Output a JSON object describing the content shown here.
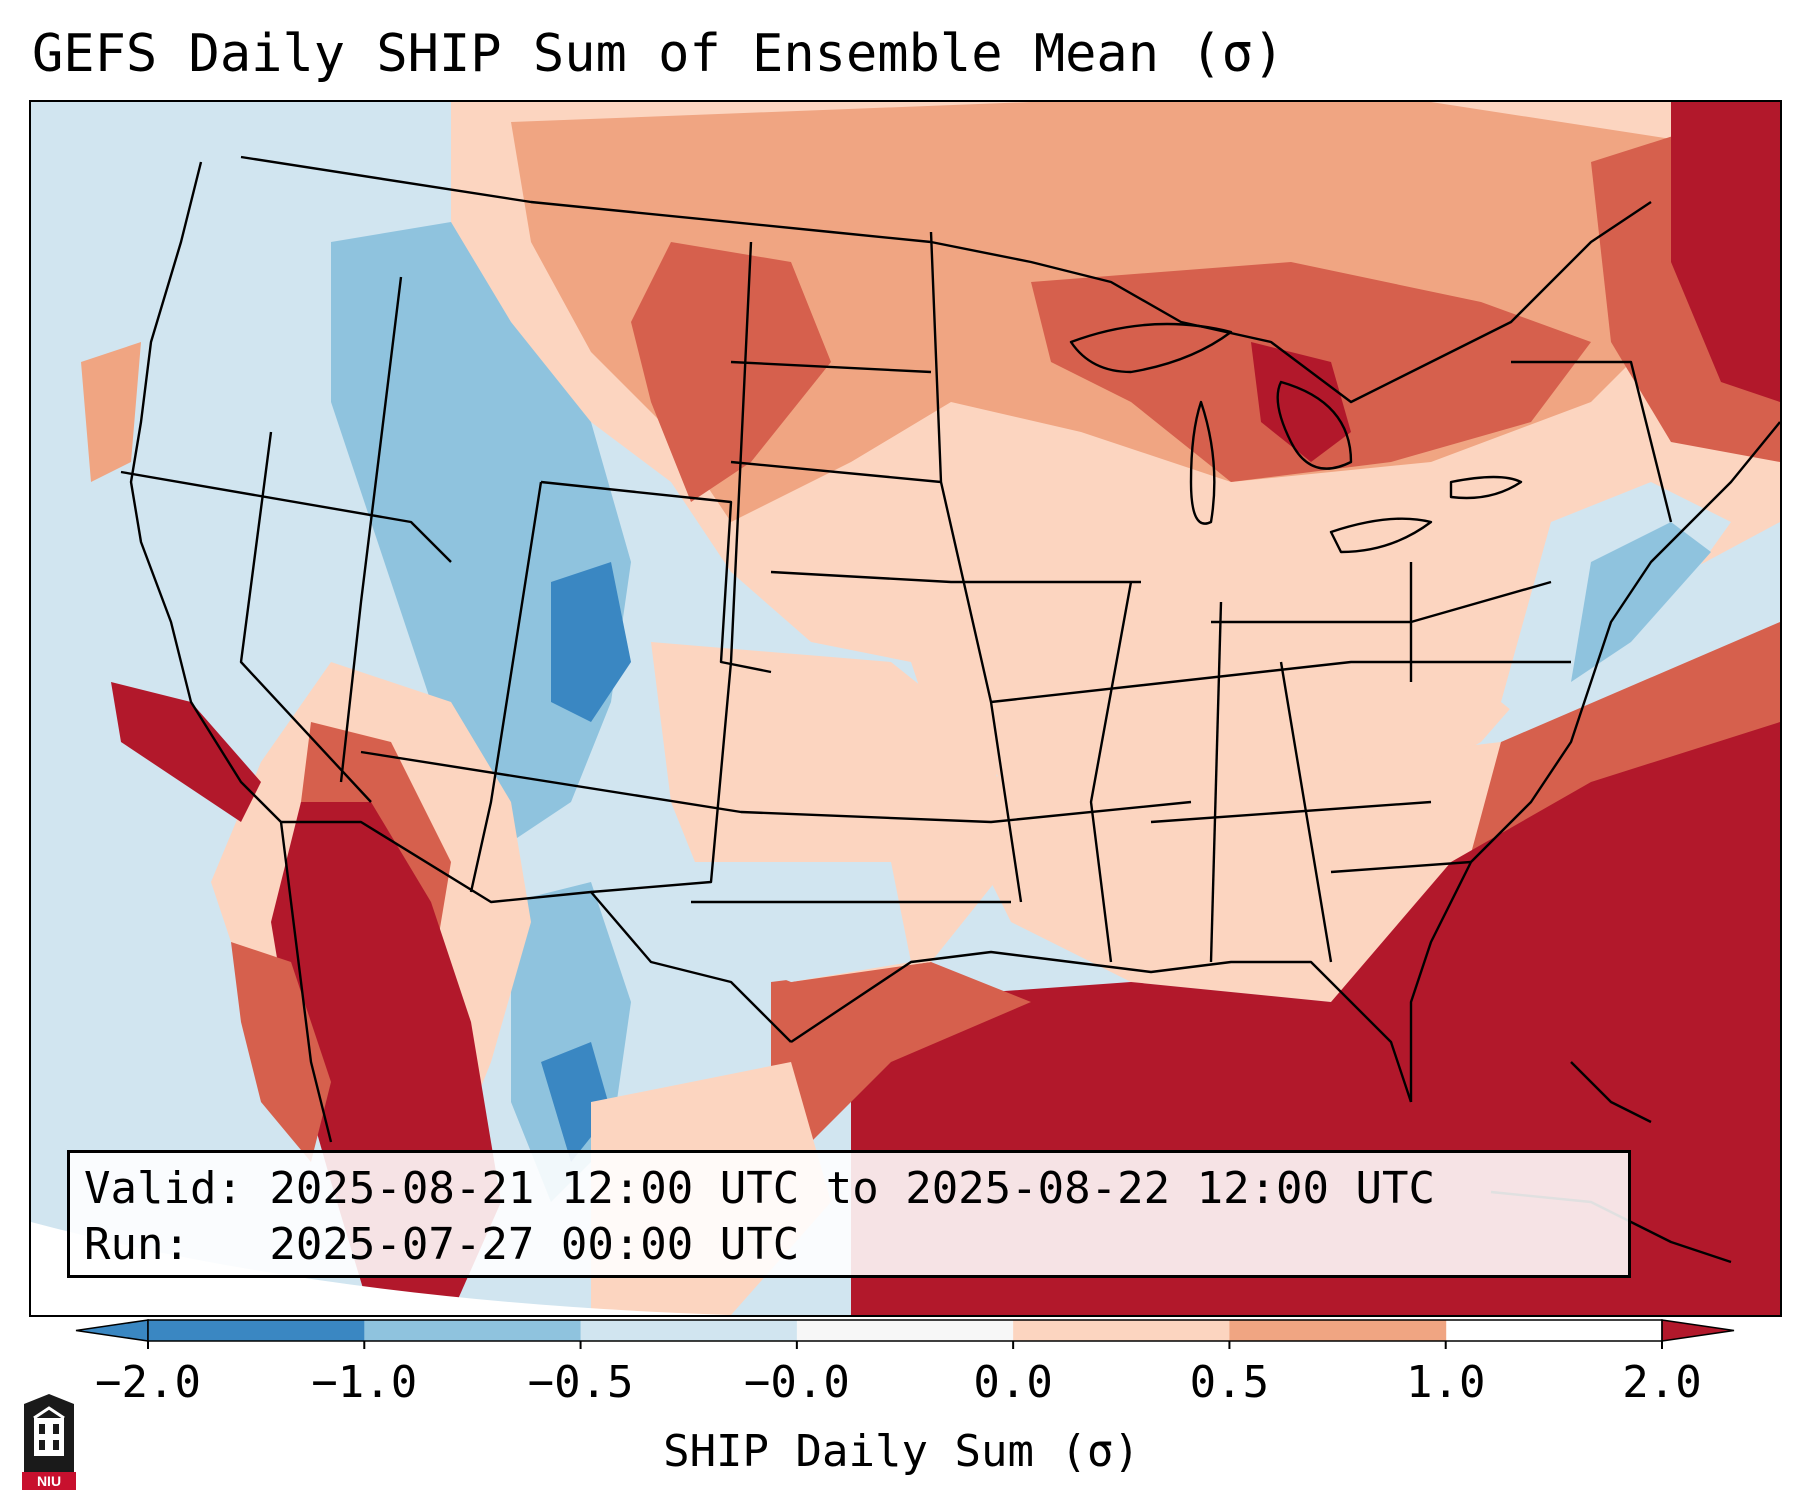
{
  "title": "GEFS Daily SHIP Sum of Ensemble Mean (σ)",
  "info": {
    "valid": "Valid: 2025-08-21 12:00 UTC to 2025-08-22 12:00 UTC",
    "run": "Run:   2025-07-27 00:00 UTC"
  },
  "colorbar": {
    "label": "SHIP Daily Sum (σ)",
    "tick_labels": [
      "−2.0",
      "−1.0",
      "−0.5",
      "−0.0",
      "0.0",
      "0.5",
      "1.0",
      "2.0"
    ],
    "colors": [
      "#3a87c2",
      "#8fc3de",
      "#d1e5f0",
      "#f7f7f7",
      "#fcd5c0",
      "#f0a582",
      "#d6604d",
      "#b2182b"
    ],
    "extend": "both"
  },
  "logo_text": "NIU",
  "map": {
    "ocean_color": "#d1e5f0",
    "region": "CONUS"
  }
}
